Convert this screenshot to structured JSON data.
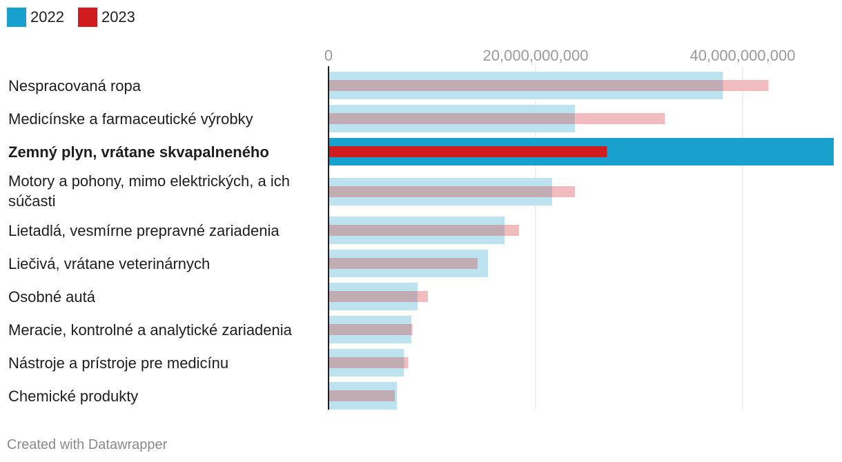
{
  "legend": [
    {
      "label": "2022",
      "color": "#18a1cd"
    },
    {
      "label": "2023",
      "color": "#d01c1f"
    }
  ],
  "footer": {
    "credit": "Created with Datawrapper"
  },
  "chart_data": {
    "type": "bar",
    "orientation": "horizontal",
    "title": "",
    "xlabel": "",
    "ylabel": "",
    "xlim": [
      0,
      48800000000
    ],
    "ticks": [
      {
        "value": 0,
        "label": "0"
      },
      {
        "value": 20000000000,
        "label": "20,000,000,000"
      },
      {
        "value": 40000000000,
        "label": "40,000,000,000"
      }
    ],
    "highlighted_category": "Zemný plyn, vrátane skvapalneného",
    "categories": [
      "Nespracovaná ropa",
      "Medicínske a farmaceutické výrobky",
      "Zemný plyn, vrátane skvapalneného",
      "Motory a pohony, mimo elektrických, a ich súčasti",
      "Lietadlá, vesmírne prepravné zariadenia",
      "Liečivá, vrátane veterinárnych",
      "Osobné autá",
      "Meracie, kontrolné a analytické zariadenia",
      "Nástroje a prístroje pre medicínu",
      "Chemické produkty"
    ],
    "series": [
      {
        "name": "2022",
        "color": "#18a1cd",
        "values": [
          38100000000,
          23800000000,
          48800000000,
          21600000000,
          17000000000,
          15400000000,
          8600000000,
          8000000000,
          7300000000,
          6600000000
        ]
      },
      {
        "name": "2023",
        "color": "#d01c1f",
        "values": [
          42500000000,
          32500000000,
          26900000000,
          23800000000,
          18400000000,
          14400000000,
          9600000000,
          8100000000,
          7700000000,
          6400000000
        ]
      }
    ]
  }
}
